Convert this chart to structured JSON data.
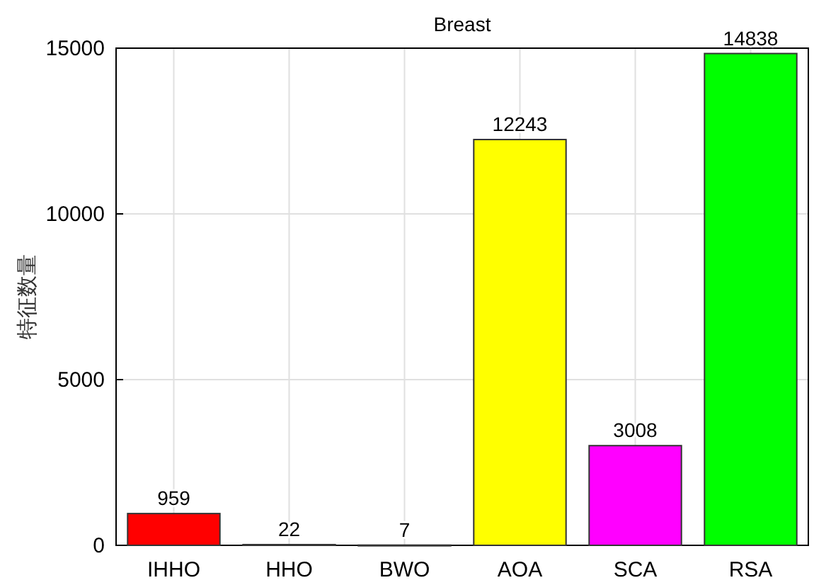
{
  "chart_data": {
    "type": "bar",
    "title": "Breast",
    "ylabel": "特征数量",
    "categories": [
      "IHHO",
      "HHO",
      "BWO",
      "AOA",
      "SCA",
      "RSA"
    ],
    "values": [
      959,
      22,
      7,
      12243,
      3008,
      14838
    ],
    "colors": [
      "#ff0000",
      "#000000",
      "#000000",
      "#ffff00",
      "#ff00ff",
      "#00ff00"
    ],
    "ylim": [
      0,
      15000
    ],
    "yticks": [
      0,
      5000,
      10000,
      15000
    ],
    "grid": true,
    "data_labels": true
  }
}
